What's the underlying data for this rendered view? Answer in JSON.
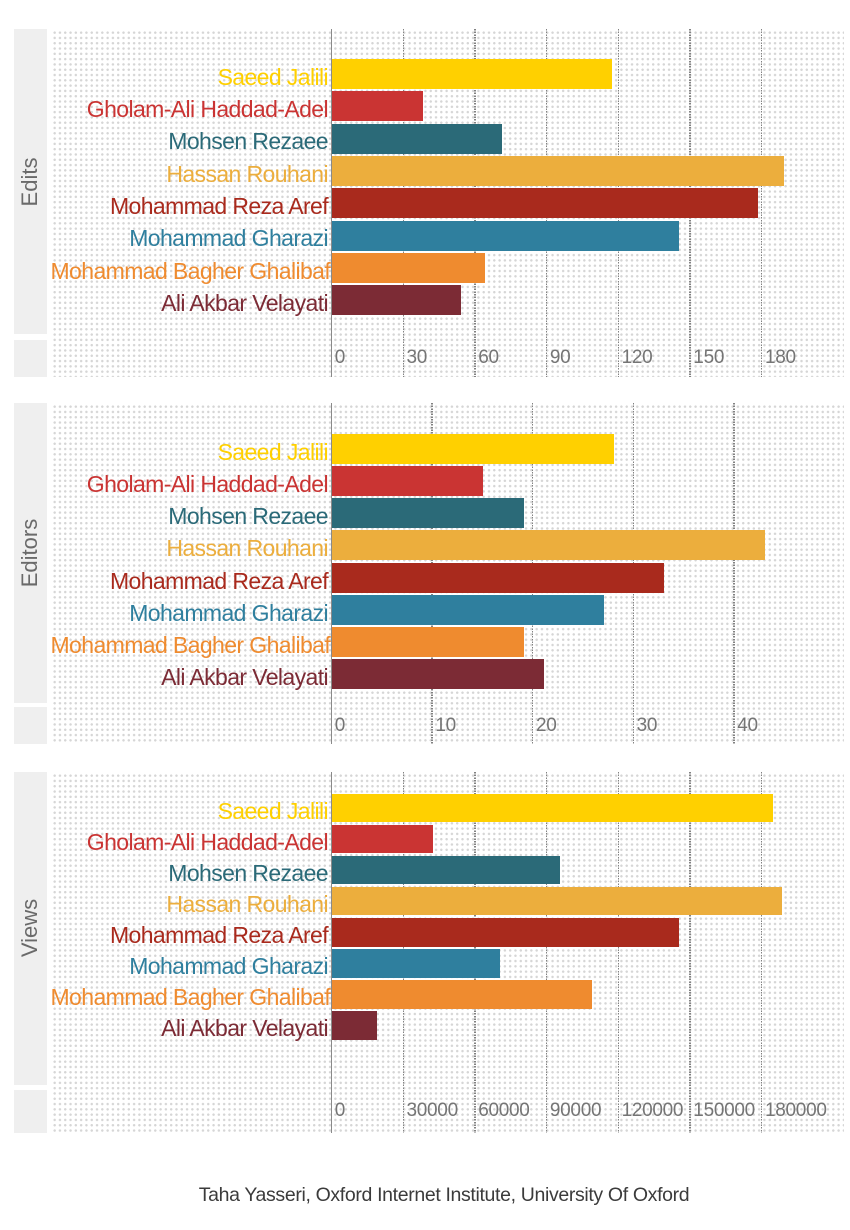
{
  "footer": {
    "credit": "Taha Yasseri, Oxford Internet Institute, University Of Oxford"
  },
  "candidates": [
    {
      "name": "Saeed Jalili",
      "color": "#ffd000"
    },
    {
      "name": "Gholam-Ali Haddad-Adel",
      "color": "#ca3433"
    },
    {
      "name": "Mohsen Rezaee",
      "color": "#2b6a78"
    },
    {
      "name": "Hassan Rouhani",
      "color": "#ecae3d"
    },
    {
      "name": "Mohammad Reza Aref",
      "color": "#a92a1d"
    },
    {
      "name": "Mohammad Gharazi",
      "color": "#2f7f9e"
    },
    {
      "name": "Mohammad Bagher Ghalibaf",
      "color": "#ef8b2f"
    },
    {
      "name": "Ali Akbar Velayati",
      "color": "#7c2b35"
    }
  ],
  "chart_data": [
    {
      "type": "bar",
      "orientation": "horizontal",
      "title": "Edits",
      "categories": [
        "Saeed Jalili",
        "Gholam-Ali Haddad-Adel",
        "Mohsen Rezaee",
        "Hassan Rouhani",
        "Mohammad Reza Aref",
        "Mohammad Gharazi",
        "Mohammad Bagher Ghalibaf",
        "Ali Akbar Velayati"
      ],
      "values": [
        117,
        38,
        71,
        189,
        178,
        145,
        64,
        54
      ],
      "colors": [
        "#ffd000",
        "#ca3433",
        "#2b6a78",
        "#ecae3d",
        "#a92a1d",
        "#2f7f9e",
        "#ef8b2f",
        "#7c2b35"
      ],
      "x_ticks": [
        0,
        30,
        60,
        90,
        120,
        150,
        180
      ],
      "tick_labels": [
        "0",
        "30",
        "60",
        "90",
        "120",
        "150",
        "180"
      ],
      "xlim": [
        0,
        214
      ],
      "grid": "dotted"
    },
    {
      "type": "bar",
      "orientation": "horizontal",
      "title": "Editors",
      "categories": [
        "Saeed Jalili",
        "Gholam-Ali Haddad-Adel",
        "Mohsen Rezaee",
        "Hassan Rouhani",
        "Mohammad Reza Aref",
        "Mohammad Gharazi",
        "Mohammad Bagher Ghalibaf",
        "Ali Akbar Velayati"
      ],
      "values": [
        28,
        15,
        19,
        43,
        33,
        27,
        19,
        21
      ],
      "colors": [
        "#ffd000",
        "#ca3433",
        "#2b6a78",
        "#ecae3d",
        "#a92a1d",
        "#2f7f9e",
        "#ef8b2f",
        "#7c2b35"
      ],
      "x_ticks": [
        0,
        10,
        20,
        30,
        40
      ],
      "tick_labels": [
        "0",
        "10",
        "20",
        "30",
        "40"
      ],
      "xlim": [
        0,
        51
      ],
      "grid": "dotted"
    },
    {
      "type": "bar",
      "orientation": "horizontal",
      "title": "Views",
      "categories": [
        "Saeed Jalili",
        "Gholam-Ali Haddad-Adel",
        "Mohsen Rezaee",
        "Hassan Rouhani",
        "Mohammad Reza Aref",
        "Mohammad Gharazi",
        "Mohammad Bagher Ghalibaf",
        "Ali Akbar Velayati"
      ],
      "values": [
        184500,
        42300,
        95200,
        188100,
        145100,
        70100,
        108500,
        18500
      ],
      "colors": [
        "#ffd000",
        "#ca3433",
        "#2b6a78",
        "#ecae3d",
        "#a92a1d",
        "#2f7f9e",
        "#ef8b2f",
        "#7c2b35"
      ],
      "x_ticks": [
        0,
        30000,
        60000,
        90000,
        120000,
        150000,
        180000
      ],
      "tick_labels": [
        "0",
        "30000",
        "60000",
        "90000",
        "120000",
        "150000",
        "180000"
      ],
      "xlim": [
        0,
        214000
      ],
      "grid": "dotted"
    }
  ]
}
